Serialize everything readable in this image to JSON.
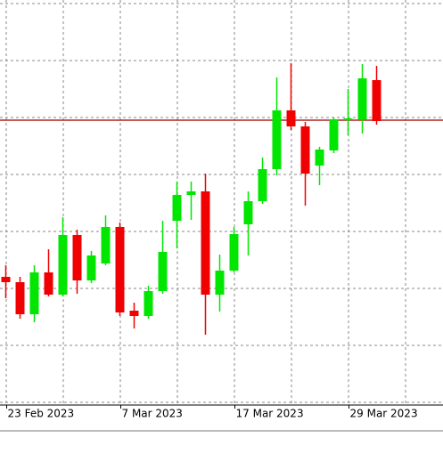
{
  "chart_data": {
    "type": "candlestick",
    "categories": [
      "23 Feb 2023",
      null,
      null,
      null,
      null,
      null,
      null,
      null,
      "7 Mar 2023",
      null,
      null,
      null,
      null,
      null,
      null,
      null,
      "17 Mar 2023",
      null,
      null,
      null,
      null,
      null,
      null,
      null,
      "29 Mar 2023",
      null,
      null
    ],
    "open": [
      144,
      138,
      102,
      149,
      124,
      191,
      140,
      159,
      200,
      106,
      100,
      128,
      207,
      236,
      240,
      124,
      151,
      203,
      229,
      265,
      331,
      313,
      269,
      286,
      320,
      321,
      365
    ],
    "high": [
      157,
      144,
      157,
      175,
      211,
      197,
      173,
      213,
      205,
      115,
      134,
      207,
      251,
      251,
      260,
      169,
      200,
      240,
      278,
      368,
      384,
      318,
      290,
      323,
      355,
      383,
      381
    ],
    "low": [
      120,
      97,
      93,
      122,
      122,
      125,
      137,
      157,
      100,
      86,
      97,
      125,
      176,
      208,
      79,
      105,
      149,
      168,
      226,
      258,
      309,
      224,
      247,
      283,
      303,
      305,
      315
    ],
    "close": [
      138,
      102,
      149,
      124,
      191,
      140,
      168,
      200,
      104,
      100,
      128,
      172,
      236,
      240,
      124,
      151,
      192,
      229,
      265,
      331,
      313,
      260,
      287,
      321,
      322,
      367,
      319
    ],
    "up_color": "#00e600",
    "down_color": "#f00000",
    "price_line": 320,
    "price_line_color": "#b22222",
    "ylim": [
      0,
      455
    ],
    "grid": true
  }
}
